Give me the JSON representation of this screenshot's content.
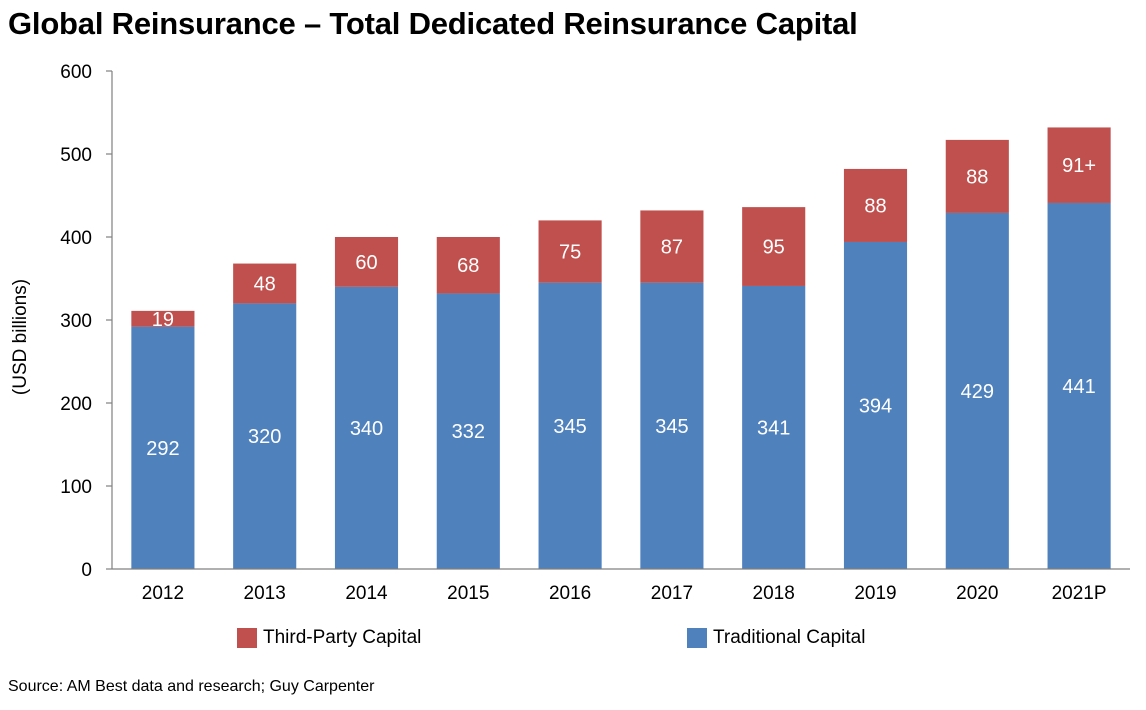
{
  "title": "Global Reinsurance – Total Dedicated Reinsurance Capital",
  "source": "Source: AM Best data and research; Guy Carpenter",
  "colors": {
    "traditional": "#4F81BD",
    "third_party": "#C0504D",
    "axis": "#808080"
  },
  "chart_data": {
    "type": "bar",
    "stacked": true,
    "title": "Global Reinsurance – Total Dedicated Reinsurance Capital",
    "xlabel": "",
    "ylabel": "(USD billions)",
    "ylim": [
      0,
      600
    ],
    "yticks": [
      "0",
      "100",
      "200",
      "300",
      "400",
      "500",
      "600"
    ],
    "grid": false,
    "legend_position": "bottom",
    "categories": [
      "2012",
      "2013",
      "2014",
      "2015",
      "2016",
      "2017",
      "2018",
      "2019",
      "2020",
      "2021P"
    ],
    "series": [
      {
        "name": "Traditional Capital",
        "values": [
          292,
          320,
          340,
          332,
          345,
          345,
          341,
          394,
          429,
          441
        ],
        "labels": [
          "292",
          "320",
          "340",
          "332",
          "345",
          "345",
          "341",
          "394",
          "429",
          "441"
        ]
      },
      {
        "name": "Third-Party Capital",
        "values": [
          19,
          48,
          60,
          68,
          75,
          87,
          95,
          88,
          88,
          91
        ],
        "labels": [
          "19",
          "48",
          "60",
          "68",
          "75",
          "87",
          "95",
          "88",
          "88",
          "91+"
        ]
      }
    ]
  }
}
